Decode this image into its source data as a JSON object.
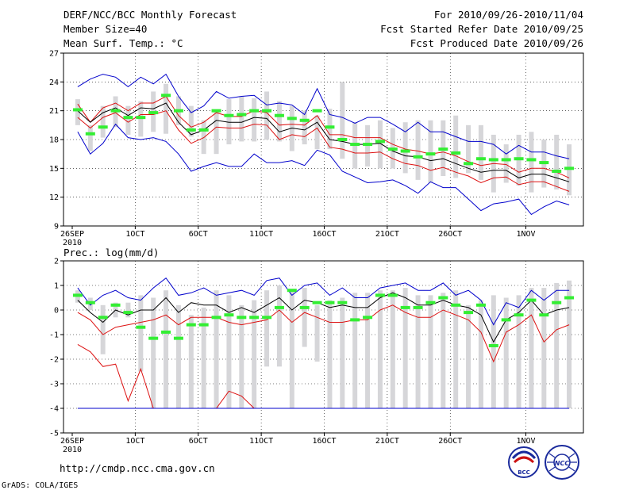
{
  "header": {
    "title": "DERF/NCC/BCC Monthly Forecast",
    "member_size": "Member Size=40",
    "period": "For 2010/09/26-2010/11/04",
    "fcst_started": "Fcst Started Refer Date 2010/09/25",
    "fcst_produced": "Fcst Produced Date 2010/09/26"
  },
  "footer": {
    "url": "http://cmdp.ncc.cma.gov.cn",
    "credit": "GrADS: COLA/IGES",
    "logo1_text": "BCC",
    "logo2_text": "NCC"
  },
  "colors": {
    "bars": "#d6d6d9",
    "obs": "#33ee33",
    "mean": "#000000",
    "spread": "#dd1111",
    "extreme": "#0000cc"
  },
  "chart_data": [
    {
      "type": "line",
      "title": "Mean Surf. Temp.: °C",
      "ylim": [
        9,
        27
      ],
      "yticks": [
        9,
        12,
        15,
        18,
        21,
        24,
        27
      ],
      "x_tick_labels": [
        "26SEP",
        "1OCT",
        "6OCT",
        "11OCT",
        "16OCT",
        "21OCT",
        "26OCT",
        "1NOV"
      ],
      "x_tick_days": [
        1,
        6,
        11,
        16,
        21,
        26,
        31,
        37
      ],
      "x_sublabel": "2010",
      "days": 40,
      "bar_low": [
        19.5,
        16.8,
        18.2,
        19.3,
        18.5,
        18.3,
        18.8,
        18.6,
        19.5,
        18.3,
        16.5,
        16.5,
        17.5,
        17.8,
        17.8,
        18.0,
        17.8,
        16.8,
        17.5,
        17.0,
        17.0,
        16.0,
        15.0,
        15.2,
        15.0,
        15.0,
        14.5,
        13.8,
        13.5,
        14.2,
        14.0,
        14.5,
        13.8,
        12.5,
        13.5,
        13.2,
        12.5,
        13.0,
        12.8,
        12.2
      ],
      "bar_high": [
        22.2,
        19.5,
        21.5,
        22.5,
        21.5,
        22.0,
        23.0,
        23.8,
        22.5,
        21.5,
        20.0,
        21.0,
        22.2,
        22.5,
        22.3,
        23.0,
        22.0,
        21.5,
        21.0,
        20.5,
        21.2,
        24.0,
        19.8,
        19.5,
        20.0,
        19.2,
        19.8,
        20.0,
        20.0,
        20.0,
        20.5,
        19.5,
        19.5,
        18.5,
        17.5,
        18.5,
        18.8,
        18.0,
        18.5,
        17.5
      ],
      "obs": [
        21.1,
        18.6,
        19.3,
        21.0,
        20.3,
        20.3,
        20.8,
        22.6,
        21.0,
        19.0,
        19.0,
        21.0,
        20.5,
        20.6,
        21.0,
        21.0,
        20.5,
        20.2,
        20.0,
        21.0,
        19.3,
        18.0,
        17.5,
        17.5,
        17.8,
        17.0,
        16.8,
        16.2,
        16.5,
        17.0,
        16.6,
        15.5,
        16.0,
        15.9,
        15.9,
        16.0,
        15.9,
        15.6,
        14.7,
        15.0
      ],
      "series": [
        {
          "name": "max",
          "role": "extreme",
          "values": [
            23.5,
            24.3,
            24.8,
            24.5,
            23.5,
            24.5,
            23.8,
            24.8,
            22.5,
            20.8,
            21.5,
            23.0,
            22.3,
            22.5,
            22.6,
            21.6,
            21.8,
            21.6,
            20.6,
            23.3,
            20.6,
            20.3,
            19.7,
            20.3,
            20.3,
            19.6,
            18.8,
            19.8,
            18.8,
            18.8,
            18.3,
            17.8,
            17.8,
            17.5,
            16.5,
            17.4,
            16.7,
            16.7,
            16.3,
            16.0
          ]
        },
        {
          "name": "upper",
          "role": "spread",
          "values": [
            21.7,
            19.8,
            21.3,
            21.8,
            21.0,
            21.8,
            21.8,
            22.5,
            20.5,
            19.3,
            19.8,
            20.8,
            20.4,
            20.4,
            21.0,
            20.8,
            19.5,
            19.6,
            19.5,
            20.5,
            18.5,
            18.5,
            18.2,
            18.2,
            18.2,
            17.5,
            17.0,
            16.8,
            16.5,
            16.7,
            16.3,
            15.7,
            15.3,
            15.5,
            15.4,
            14.6,
            15.0,
            15.0,
            14.6,
            14.0
          ]
        },
        {
          "name": "mean",
          "role": "mean",
          "values": [
            21.0,
            19.8,
            20.8,
            21.3,
            20.5,
            21.3,
            21.2,
            21.8,
            19.8,
            18.5,
            19.0,
            20.0,
            19.8,
            19.8,
            20.3,
            20.2,
            18.8,
            19.2,
            19.0,
            19.8,
            18.0,
            17.8,
            17.5,
            17.5,
            17.6,
            16.8,
            16.3,
            16.2,
            15.8,
            16.0,
            15.5,
            15.0,
            14.6,
            14.8,
            14.8,
            14.0,
            14.4,
            14.4,
            14.0,
            13.6
          ]
        },
        {
          "name": "lower",
          "role": "spread",
          "values": [
            20.3,
            19.2,
            20.3,
            20.8,
            19.8,
            20.6,
            20.6,
            21.0,
            19.0,
            17.6,
            18.2,
            19.3,
            19.2,
            19.2,
            19.6,
            19.5,
            18.0,
            18.5,
            18.3,
            19.2,
            17.2,
            17.0,
            16.6,
            16.6,
            16.7,
            16.0,
            15.5,
            15.3,
            14.8,
            15.1,
            14.6,
            14.2,
            13.5,
            14.0,
            14.1,
            13.3,
            13.6,
            13.6,
            13.1,
            12.6
          ]
        },
        {
          "name": "min",
          "role": "extreme",
          "values": [
            18.8,
            16.5,
            17.6,
            19.6,
            18.2,
            18.0,
            18.2,
            17.8,
            16.5,
            14.7,
            15.2,
            15.6,
            15.2,
            15.2,
            16.5,
            15.6,
            15.6,
            15.8,
            15.3,
            16.9,
            16.4,
            14.7,
            14.1,
            13.5,
            13.6,
            13.8,
            13.2,
            12.4,
            13.6,
            13.0,
            13.0,
            11.8,
            10.6,
            11.3,
            11.5,
            11.8,
            10.2,
            11.0,
            11.6,
            11.2
          ]
        }
      ]
    },
    {
      "type": "line",
      "title": "Prec.: log(mm/d)",
      "ylim": [
        -5,
        2
      ],
      "yticks": [
        -5,
        -4,
        -3,
        -2,
        -1,
        0,
        1,
        2
      ],
      "x_tick_labels": [
        "26SEP",
        "1OCT",
        "6OCT",
        "11OCT",
        "16OCT",
        "21OCT",
        "26OCT",
        "1NOV"
      ],
      "x_tick_days": [
        1,
        6,
        11,
        16,
        21,
        26,
        31,
        37
      ],
      "x_sublabel": "2010",
      "days": 40,
      "bar_low": [
        0.3,
        0.0,
        -1.8,
        -0.3,
        -0.3,
        -2.5,
        -4.0,
        -4.0,
        -4.0,
        -4.0,
        -4.0,
        -4.0,
        -4.0,
        -4.0,
        -4.0,
        -2.3,
        -2.3,
        -4.0,
        -1.5,
        -2.1,
        -4.0,
        -4.0,
        -4.0,
        -4.0,
        -4.0,
        -4.0,
        -4.0,
        -4.0,
        -4.0,
        -4.0,
        -4.0,
        -4.0,
        -4.0,
        -4.0,
        -4.0,
        -4.0,
        -4.0,
        -4.0,
        -4.0,
        -4.0
      ],
      "bar_high": [
        0.8,
        0.5,
        0.2,
        0.3,
        0.3,
        0.6,
        0.5,
        0.8,
        0.2,
        -0.2,
        0.1,
        0.8,
        0.6,
        0.2,
        0.4,
        0.8,
        1.0,
        0.8,
        0.9,
        0.2,
        0.4,
        0.5,
        0.7,
        0.7,
        0.8,
        0.8,
        0.9,
        0.6,
        0.6,
        0.7,
        0.8,
        0.2,
        0.4,
        0.6,
        0.5,
        0.6,
        0.9,
        0.9,
        1.1,
        1.2
      ],
      "obs": [
        0.6,
        0.3,
        -0.3,
        0.2,
        -0.1,
        -0.7,
        -1.15,
        -0.9,
        -1.15,
        -0.6,
        -0.6,
        -0.3,
        -0.2,
        -0.3,
        -0.3,
        -0.3,
        0.1,
        0.8,
        0.1,
        0.3,
        0.3,
        0.3,
        -0.4,
        -0.3,
        0.6,
        0.6,
        0.1,
        0.1,
        0.3,
        0.5,
        0.2,
        -0.1,
        0.2,
        -1.45,
        -0.4,
        -0.2,
        0.4,
        -0.2,
        0.3,
        0.5
      ],
      "series": [
        {
          "name": "max",
          "role": "extreme",
          "values": [
            0.9,
            0.2,
            0.6,
            0.8,
            0.5,
            0.4,
            0.9,
            1.3,
            0.6,
            0.7,
            0.9,
            0.6,
            0.7,
            0.8,
            0.6,
            1.2,
            1.3,
            0.6,
            1.0,
            1.1,
            0.6,
            0.9,
            0.5,
            0.5,
            0.9,
            1.0,
            1.1,
            0.8,
            0.8,
            1.1,
            0.6,
            0.8,
            0.4,
            -0.6,
            0.3,
            0.1,
            0.8,
            0.4,
            0.8,
            0.8
          ]
        },
        {
          "name": "mean",
          "role": "mean",
          "values": [
            0.4,
            -0.1,
            -0.5,
            0.0,
            -0.2,
            0.0,
            0.0,
            0.5,
            -0.1,
            0.3,
            0.2,
            0.2,
            -0.1,
            0.1,
            -0.1,
            0.2,
            0.5,
            0.0,
            0.4,
            0.3,
            0.1,
            0.2,
            0.1,
            0.1,
            0.5,
            0.7,
            0.5,
            0.2,
            0.2,
            0.4,
            0.2,
            0.1,
            -0.2,
            -1.3,
            -0.4,
            -0.1,
            0.4,
            -0.2,
            0.0,
            0.1
          ]
        },
        {
          "name": "lower",
          "role": "spread",
          "values": [
            -0.1,
            -0.4,
            -1.0,
            -0.7,
            -0.6,
            -0.5,
            -0.4,
            -0.2,
            -0.6,
            -0.3,
            -0.3,
            -0.3,
            -0.5,
            -0.6,
            -0.5,
            -0.4,
            0.0,
            -0.5,
            -0.1,
            -0.3,
            -0.5,
            -0.5,
            -0.4,
            -0.4,
            0.0,
            0.2,
            -0.1,
            -0.3,
            -0.3,
            0.0,
            -0.2,
            -0.4,
            -0.9,
            -2.1,
            -0.9,
            -0.6,
            -0.2,
            -1.3,
            -0.8,
            -0.6
          ]
        },
        {
          "name": "min",
          "role": "spread",
          "values": [
            -1.4,
            -1.7,
            -2.3,
            -2.2,
            -3.7,
            -2.4,
            -4.0,
            -4.0,
            -4.0,
            -4.0,
            -4.0,
            -4.0,
            -3.3,
            -3.5,
            -4.0,
            -4.0,
            -4.0,
            -4.0,
            -4.0,
            -4.0,
            -4.0,
            -4.0,
            -4.0,
            -4.0,
            -4.0,
            -4.0,
            -4.0,
            -4.0,
            -4.0,
            -4.0,
            -4.0,
            -4.0,
            -4.0,
            -4.0,
            -4.0,
            -4.0,
            -4.0,
            -4.0,
            -4.0,
            -4.0
          ]
        },
        {
          "name": "floor",
          "role": "extreme",
          "values": [
            -4.0,
            -4.0,
            -4.0,
            -4.0,
            -4.0,
            -4.0,
            -4.0,
            -4.0,
            -4.0,
            -4.0,
            -4.0,
            -4.0,
            -4.0,
            -4.0,
            -4.0,
            -4.0,
            -4.0,
            -4.0,
            -4.0,
            -4.0,
            -4.0,
            -4.0,
            -4.0,
            -4.0,
            -4.0,
            -4.0,
            -4.0,
            -4.0,
            -4.0,
            -4.0,
            -4.0,
            -4.0,
            -4.0,
            -4.0,
            -4.0,
            -4.0,
            -4.0,
            -4.0,
            -4.0,
            -4.0
          ]
        }
      ]
    }
  ]
}
